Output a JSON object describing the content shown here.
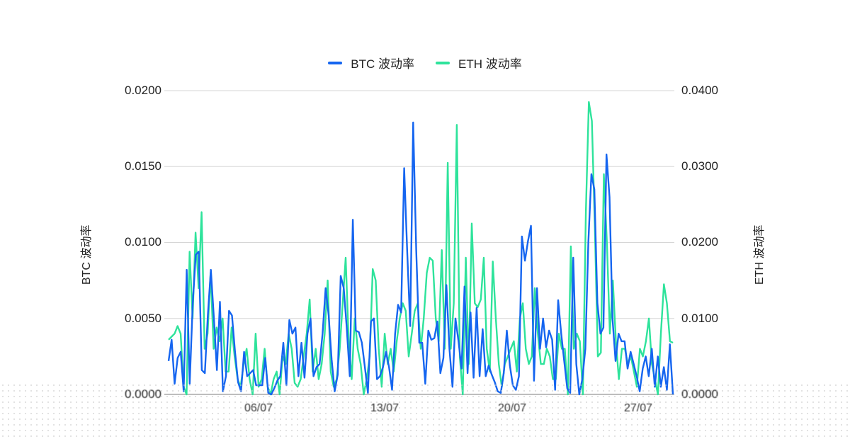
{
  "legend": [
    {
      "label": "BTC 波动率",
      "color": "#1565f0"
    },
    {
      "label": "ETH 波动率",
      "color": "#2ee39b"
    }
  ],
  "axes": {
    "left_title": "BTC 波动率",
    "right_title": "ETH 波动率",
    "left_ticks": [
      "0.0200",
      "0.0150",
      "0.0100",
      "0.0050",
      "0.0000"
    ],
    "right_ticks": [
      "0.0400",
      "0.0300",
      "0.0200",
      "0.0100",
      "0.0000"
    ],
    "x_ticks": [
      "06/07",
      "13/07",
      "20/07",
      "27/07"
    ]
  },
  "chart_data": {
    "type": "line",
    "title": "",
    "xlabel": "",
    "ylabel": "BTC 波动率",
    "ylabel_right": "ETH 波动率",
    "ylim": [
      0,
      0.02
    ],
    "ylim_right": [
      0,
      0.04
    ],
    "x_tick_labels": [
      "06/07",
      "13/07",
      "20/07",
      "27/07"
    ],
    "legend_position": "top",
    "grid": true,
    "series": [
      {
        "name": "BTC 波动率",
        "axis": "left",
        "color": "#1565f0",
        "values": [
          0.0022,
          0.0036,
          0.0007,
          0.0024,
          0.0028,
          0.0002,
          0.0082,
          0.0007,
          0.006,
          0.0092,
          0.0094,
          0.0016,
          0.0014,
          0.0052,
          0.0082,
          0.005,
          0.0016,
          0.0061,
          0.0002,
          0.0012,
          0.0055,
          0.0052,
          0.0028,
          0.0008,
          0.0002,
          0.0028,
          0.0012,
          0.0014,
          0.0016,
          0.0006,
          0.0006,
          0.0006,
          0.0024,
          0.0001,
          0.0,
          0.0004,
          0.0009,
          0.0012,
          0.0034,
          0.0006,
          0.0049,
          0.004,
          0.0044,
          0.0012,
          0.0034,
          0.0011,
          0.004,
          0.005,
          0.0012,
          0.0018,
          0.002,
          0.004,
          0.007,
          0.0052,
          0.0023,
          0.0002,
          0.0013,
          0.0078,
          0.007,
          0.0044,
          0.0012,
          0.0115,
          0.0042,
          0.0041,
          0.0034,
          0.0018,
          0.0001,
          0.0048,
          0.005,
          0.001,
          0.0012,
          0.0018,
          0.0028,
          0.0018,
          0.0003,
          0.004,
          0.0059,
          0.0054,
          0.0149,
          0.0095,
          0.0045,
          0.0179,
          0.0095,
          0.0034,
          0.0034,
          0.0007,
          0.0042,
          0.0036,
          0.0037,
          0.0048,
          0.0014,
          0.0024,
          0.0072,
          0.003,
          0.0005,
          0.005,
          0.0035,
          0.0017,
          0.0071,
          0.0014,
          0.0054,
          0.0011,
          0.0057,
          0.0012,
          0.0043,
          0.0012,
          0.0019,
          0.0013,
          0.0008,
          0.0002,
          0.0001,
          0.0014,
          0.0042,
          0.0019,
          0.0006,
          0.0003,
          0.0012,
          0.0104,
          0.0088,
          0.0101,
          0.0111,
          0.0009,
          0.007,
          0.003,
          0.005,
          0.0031,
          0.0042,
          0.0036,
          0.0003,
          0.0062,
          0.004,
          0.0022,
          0.0004,
          0.0001,
          0.009,
          0.002,
          0.0,
          0.001,
          0.003,
          0.01,
          0.0145,
          0.0135,
          0.006,
          0.004,
          0.0044,
          0.0158,
          0.013,
          0.005,
          0.0022,
          0.004,
          0.0035,
          0.0035,
          0.0017,
          0.0028,
          0.002,
          0.0012,
          0.0002,
          0.0017,
          0.0025,
          0.0012,
          0.003,
          0.0005,
          0.0025,
          0.0005,
          0.0018,
          0.0003,
          0.0033,
          0.0
        ]
      },
      {
        "name": "ETH 波动率",
        "axis": "right",
        "color": "#2ee39b",
        "values": [
          0.0072,
          0.0076,
          0.008,
          0.009,
          0.008,
          0.001,
          0.0,
          0.0188,
          0.01,
          0.0213,
          0.014,
          0.024,
          0.006,
          0.008,
          0.016,
          0.006,
          0.0088,
          0.007,
          0.01,
          0.003,
          0.003,
          0.0088,
          0.005,
          0.002,
          0.001,
          0.004,
          0.006,
          0.002,
          0.0,
          0.008,
          0.001,
          0.002,
          0.006,
          0.001,
          0.0,
          0.002,
          0.003,
          0.0,
          0.005,
          0.004,
          0.008,
          0.006,
          0.0015,
          0.001,
          0.002,
          0.005,
          0.008,
          0.0125,
          0.003,
          0.006,
          0.002,
          0.004,
          0.008,
          0.015,
          0.003,
          0.001,
          0.002,
          0.006,
          0.012,
          0.018,
          0.007,
          0.002,
          0.01,
          0.006,
          0.004,
          0.0,
          0.002,
          0.005,
          0.0165,
          0.015,
          0.006,
          0.001,
          0.008,
          0.004,
          0.006,
          0.003,
          0.007,
          0.01,
          0.012,
          0.011,
          0.005,
          0.008,
          0.011,
          0.012,
          0.006,
          0.01,
          0.016,
          0.018,
          0.0176,
          0.01,
          0.007,
          0.019,
          0.006,
          0.0305,
          0.006,
          0.012,
          0.0355,
          0.005,
          0.0,
          0.018,
          0.004,
          0.0225,
          0.012,
          0.0115,
          0.0125,
          0.018,
          0.006,
          0.003,
          0.0175,
          0.01,
          0.004,
          0.001,
          0.004,
          0.005,
          0.006,
          0.007,
          0.003,
          0.01,
          0.012,
          0.006,
          0.004,
          0.005,
          0.014,
          0.008,
          0.004,
          0.004,
          0.006,
          0.005,
          0.002,
          0.002,
          0.008,
          0.006,
          0.006,
          0.0,
          0.0195,
          0.006,
          0.008,
          0.007,
          0.0,
          0.024,
          0.0385,
          0.036,
          0.022,
          0.005,
          0.0055,
          0.029,
          0.02,
          0.008,
          0.015,
          0.007,
          0.002,
          0.006,
          0.006,
          0.004,
          0.005,
          0.003,
          0.001,
          0.006,
          0.005,
          0.007,
          0.01,
          0.004,
          0.002,
          0.0,
          0.008,
          0.0145,
          0.012,
          0.007,
          0.0068
        ]
      }
    ]
  }
}
